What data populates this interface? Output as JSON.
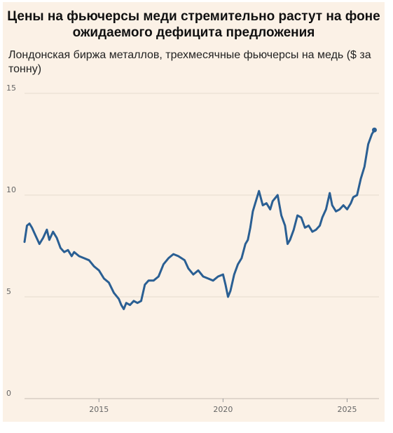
{
  "chart_data": {
    "type": "line",
    "title": "Цены на фьючерсы меди стремительно растут на фоне ожидаемого дефицита предложения",
    "subtitle": "Лондонская биржа металлов, трехмесячные фьючерсы на медь ($ за тонну)",
    "ylim": [
      0,
      15
    ],
    "yticks": [
      "0",
      "5",
      "10",
      "15"
    ],
    "xlim": [
      2012.0,
      2026.2
    ],
    "xticks": [
      "2015",
      "2020",
      "2025"
    ],
    "grid": "horizontal",
    "series": [
      {
        "color": "#2a5f93",
        "x": [
          2012.0,
          2012.1,
          2012.2,
          2012.3,
          2012.45,
          2012.6,
          2012.75,
          2012.9,
          2013.0,
          2013.15,
          2013.3,
          2013.45,
          2013.6,
          2013.75,
          2013.9,
          2014.0,
          2014.2,
          2014.4,
          2014.6,
          2014.8,
          2015.0,
          2015.2,
          2015.4,
          2015.6,
          2015.8,
          2015.9,
          2016.0,
          2016.1,
          2016.25,
          2016.4,
          2016.55,
          2016.7,
          2016.85,
          2017.0,
          2017.2,
          2017.4,
          2017.6,
          2017.8,
          2018.0,
          2018.2,
          2018.45,
          2018.6,
          2018.8,
          2019.0,
          2019.2,
          2019.4,
          2019.6,
          2019.8,
          2020.0,
          2020.1,
          2020.2,
          2020.3,
          2020.45,
          2020.6,
          2020.75,
          2020.9,
          2021.0,
          2021.1,
          2021.2,
          2021.3,
          2021.45,
          2021.6,
          2021.75,
          2021.9,
          2022.0,
          2022.2,
          2022.35,
          2022.5,
          2022.6,
          2022.7,
          2022.85,
          2023.0,
          2023.15,
          2023.3,
          2023.45,
          2023.6,
          2023.75,
          2023.9,
          2024.0,
          2024.15,
          2024.3,
          2024.4,
          2024.55,
          2024.7,
          2024.85,
          2025.0,
          2025.15,
          2025.25,
          2025.4,
          2025.55,
          2025.7,
          2025.85,
          2026.0,
          2026.1
        ],
        "values": [
          7.7,
          8.5,
          8.6,
          8.4,
          8.0,
          7.6,
          7.9,
          8.3,
          7.8,
          8.2,
          7.9,
          7.4,
          7.2,
          7.3,
          7.0,
          7.2,
          7.0,
          6.9,
          6.8,
          6.5,
          6.3,
          5.9,
          5.7,
          5.2,
          4.9,
          4.6,
          4.4,
          4.7,
          4.6,
          4.8,
          4.7,
          4.8,
          5.6,
          5.8,
          5.8,
          6.0,
          6.6,
          6.9,
          7.1,
          7.0,
          6.8,
          6.4,
          6.1,
          6.3,
          6.0,
          5.9,
          5.8,
          6.0,
          6.1,
          5.6,
          5.0,
          5.3,
          6.1,
          6.6,
          6.9,
          7.6,
          7.8,
          8.4,
          9.2,
          9.6,
          10.2,
          9.5,
          9.6,
          9.3,
          9.7,
          10.0,
          9.0,
          8.5,
          7.6,
          7.8,
          8.3,
          9.0,
          8.9,
          8.4,
          8.5,
          8.2,
          8.3,
          8.5,
          8.9,
          9.3,
          10.1,
          9.5,
          9.2,
          9.3,
          9.5,
          9.3,
          9.6,
          9.9,
          10.0,
          10.8,
          11.4,
          12.5,
          13.0,
          13.2
        ]
      }
    ]
  }
}
